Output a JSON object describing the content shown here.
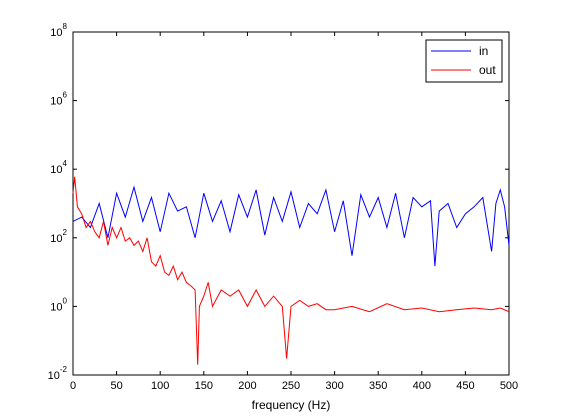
{
  "chart_data": {
    "type": "line",
    "title": "",
    "xlabel": "frequency (Hz)",
    "ylabel": "",
    "yscale": "log",
    "xlim": [
      0,
      500
    ],
    "ylim": [
      0.01,
      100000000
    ],
    "grid": false,
    "legend_placement": "top-right",
    "x_ticks": [
      0,
      50,
      100,
      150,
      200,
      250,
      300,
      350,
      400,
      450,
      500
    ],
    "x_tick_labels": [
      "0",
      "50",
      "100",
      "150",
      "200",
      "250",
      "300",
      "350",
      "400",
      "450",
      "500"
    ],
    "y_ticks": [
      0.01,
      1,
      100,
      10000,
      1000000,
      100000000
    ],
    "y_tick_labels": [
      {
        "base": "10",
        "exp": "-2"
      },
      {
        "base": "10",
        "exp": "0"
      },
      {
        "base": "10",
        "exp": "2"
      },
      {
        "base": "10",
        "exp": "4"
      },
      {
        "base": "10",
        "exp": "6"
      },
      {
        "base": "10",
        "exp": "8"
      }
    ],
    "series": [
      {
        "name": "in",
        "color": "#0000ff",
        "x": [
          0,
          10,
          20,
          30,
          40,
          50,
          60,
          70,
          80,
          90,
          100,
          110,
          120,
          130,
          140,
          150,
          160,
          170,
          180,
          190,
          200,
          210,
          220,
          230,
          240,
          250,
          260,
          270,
          280,
          290,
          300,
          310,
          320,
          330,
          340,
          350,
          360,
          370,
          380,
          390,
          400,
          410,
          415,
          420,
          430,
          440,
          450,
          460,
          470,
          480,
          485,
          490,
          495,
          500
        ],
        "y": [
          300,
          400,
          200,
          1000,
          100,
          2000,
          400,
          3000,
          300,
          1500,
          150,
          2000,
          600,
          800,
          100,
          2000,
          300,
          1200,
          150,
          1800,
          400,
          2500,
          120,
          1500,
          300,
          2200,
          200,
          1000,
          500,
          2500,
          150,
          1200,
          30,
          1800,
          400,
          1500,
          200,
          2000,
          100,
          1500,
          800,
          1200,
          15,
          600,
          1000,
          200,
          500,
          800,
          1500,
          40,
          1000,
          2500,
          800,
          60
        ]
      },
      {
        "name": "out",
        "color": "#ff0000",
        "x": [
          0,
          2,
          5,
          10,
          15,
          20,
          25,
          30,
          35,
          40,
          45,
          50,
          55,
          60,
          65,
          70,
          75,
          80,
          85,
          90,
          95,
          100,
          105,
          110,
          115,
          120,
          125,
          130,
          135,
          140,
          143,
          145,
          150,
          155,
          160,
          170,
          180,
          190,
          200,
          210,
          220,
          230,
          240,
          245,
          250,
          260,
          270,
          280,
          290,
          300,
          320,
          340,
          360,
          380,
          400,
          420,
          440,
          460,
          480,
          490,
          500
        ],
        "y": [
          2000,
          6000,
          800,
          500,
          200,
          300,
          150,
          100,
          300,
          60,
          200,
          100,
          200,
          80,
          100,
          60,
          80,
          40,
          100,
          20,
          15,
          30,
          10,
          8,
          15,
          6,
          10,
          5,
          4,
          3,
          0.02,
          1,
          2,
          5,
          1,
          3,
          2,
          3,
          1,
          3,
          1,
          2,
          1,
          0.03,
          1,
          1.5,
          1,
          1.2,
          0.8,
          0.8,
          1,
          0.7,
          1.2,
          0.8,
          0.9,
          0.7,
          0.8,
          0.9,
          0.8,
          0.9,
          0.7
        ]
      }
    ]
  }
}
